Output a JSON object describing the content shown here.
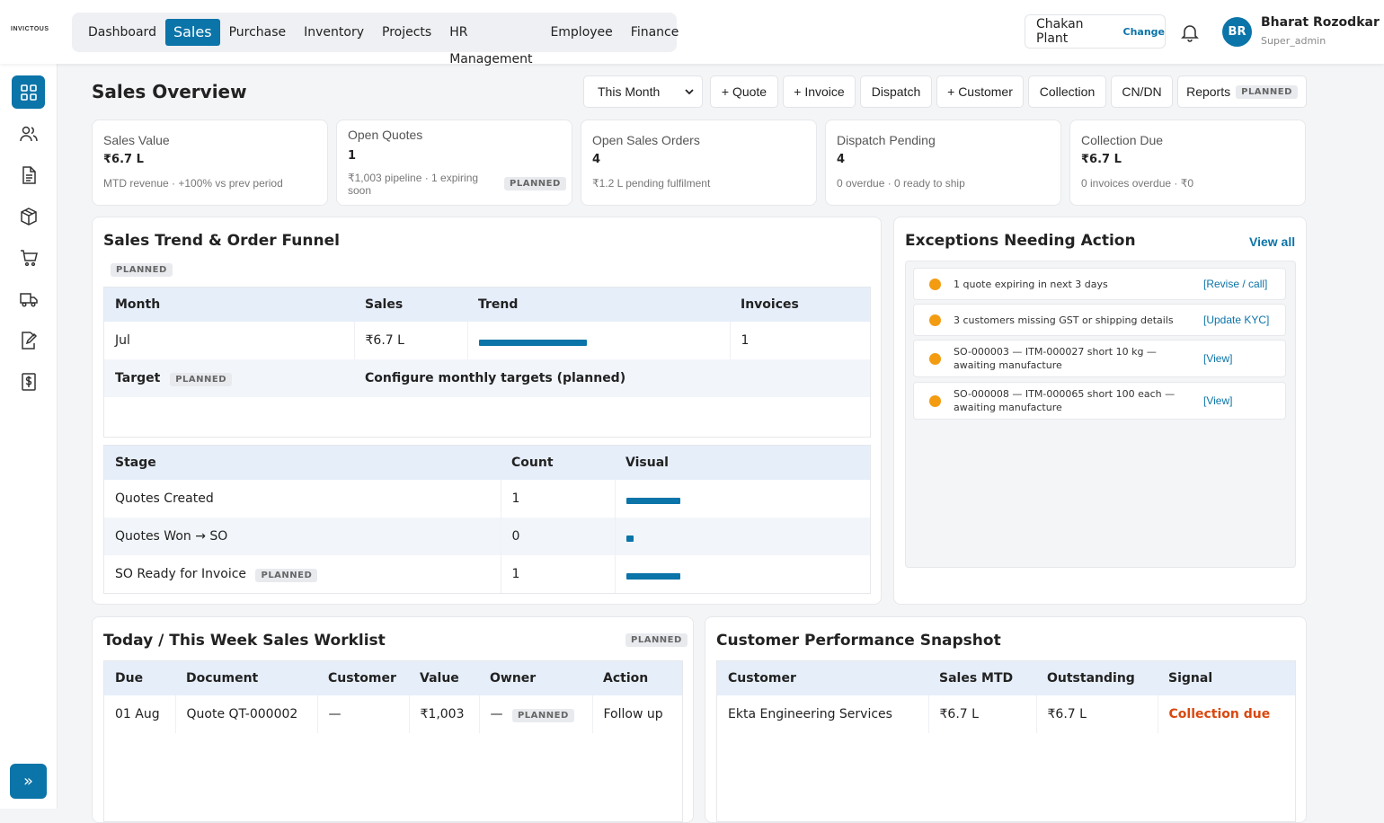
{
  "brand": "INVICTOUS",
  "nav": [
    "Dashboard",
    "Sales",
    "Purchase",
    "Inventory",
    "Projects",
    "HR Management",
    "Employee",
    "Finance"
  ],
  "plant": {
    "name": "Chakan Plant",
    "change": "Change"
  },
  "user": {
    "initials": "BR",
    "name": "Bharat Rozodkar",
    "role": "Super_admin"
  },
  "page_title": "Sales Overview",
  "period": "This Month",
  "actions": [
    "+ Quote",
    "+ Invoice",
    "Dispatch",
    "+ Customer",
    "Collection",
    "CN/DN"
  ],
  "reports": "Reports",
  "planned": "PLANNED",
  "kpis": [
    {
      "title": "Sales Value",
      "value": "₹6.7 L",
      "sub": "MTD revenue · +100% vs prev period"
    },
    {
      "title": "Open Quotes",
      "value": "1",
      "sub": "₹1,003 pipeline · 1 expiring soon"
    },
    {
      "title": "Open Sales Orders",
      "value": "4",
      "sub": "₹1.2 L pending fulfilment"
    },
    {
      "title": "Dispatch Pending",
      "value": "4",
      "sub": "0 overdue · 0 ready to ship"
    },
    {
      "title": "Collection Due",
      "value": "₹6.7 L",
      "sub": "0 invoices overdue · ₹0"
    }
  ],
  "trend": {
    "title": "Sales Trend & Order Funnel",
    "headers": [
      "Month",
      "Sales",
      "Trend",
      "Invoices"
    ],
    "row": {
      "month": "Jul",
      "sales": "₹6.7 L",
      "invoices": "1",
      "trend_fraction": 1.0
    },
    "target_label": "Target",
    "target_text": "Configure monthly targets (planned)"
  },
  "funnel": {
    "headers": [
      "Stage",
      "Count",
      "Visual"
    ],
    "rows": [
      {
        "stage": "Quotes Created",
        "count": "1",
        "fraction": 1.0
      },
      {
        "stage": "Quotes Won → SO",
        "count": "0",
        "fraction": 0.0
      },
      {
        "stage": "SO Ready for Invoice",
        "count": "1",
        "fraction": 1.0
      }
    ]
  },
  "exceptions": {
    "title": "Exceptions Needing Action",
    "view_all": "View all",
    "items": [
      {
        "text": "1 quote expiring in next 3 days",
        "action": "[Revise / call]"
      },
      {
        "text": "3 customers missing GST or shipping details",
        "action": "[Update KYC]"
      },
      {
        "text": "SO-000003 — ITM-000027 short 10 kg — awaiting manufacture",
        "action": "[View]"
      },
      {
        "text": "SO-000008 — ITM-000065 short 100 each — awaiting manufacture",
        "action": "[View]"
      }
    ]
  },
  "worklist": {
    "title": "Today / This Week Sales Worklist",
    "headers": [
      "Due",
      "Document",
      "Customer",
      "Value",
      "Owner",
      "Action"
    ],
    "row": {
      "due": "01 Aug",
      "document": "Quote QT-000002",
      "customer": "—",
      "value": "₹1,003",
      "owner": "—",
      "action": "Follow up"
    }
  },
  "customers": {
    "title": "Customer Performance Snapshot",
    "headers": [
      "Customer",
      "Sales MTD",
      "Outstanding",
      "Signal"
    ],
    "row": {
      "customer": "Ekta Engineering Services",
      "sales": "₹6.7 L",
      "outstanding": "₹6.7 L",
      "signal": "Collection due"
    },
    "signal_color": "#d9480f"
  },
  "colors": {
    "accent": "#0b74a8",
    "warning": "#f39c12"
  },
  "sidebar_icons": [
    "dashboard-icon",
    "users-icon",
    "document-icon",
    "package-icon",
    "cart-icon",
    "truck-icon",
    "edit-document-icon",
    "invoice-dollar-icon"
  ]
}
